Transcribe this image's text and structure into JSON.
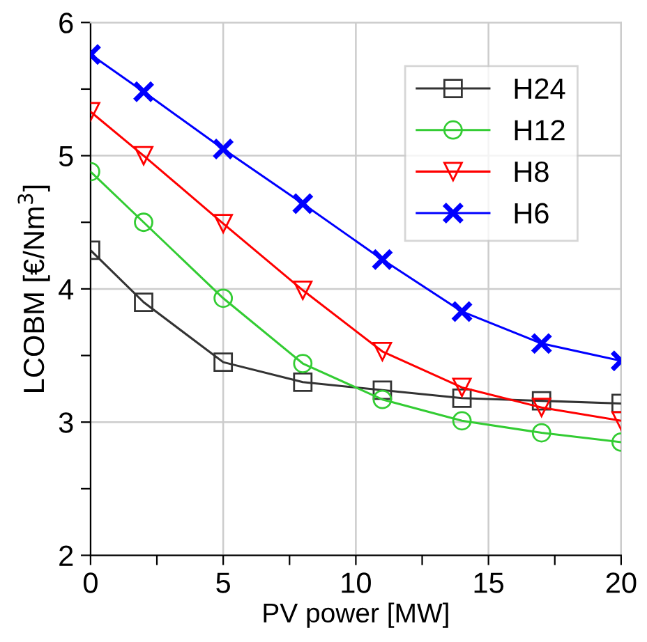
{
  "chart_data": {
    "type": "line",
    "xlabel": "PV power [MW]",
    "ylabel": "LCOBM [€/Nm$^{3}$]",
    "x": [
      0,
      2,
      5,
      8,
      11,
      14,
      17,
      20
    ],
    "series": [
      {
        "name": "H24",
        "color": "#333333",
        "marker": "square",
        "values": [
          4.29,
          3.9,
          3.45,
          3.3,
          3.24,
          3.18,
          3.16,
          3.14
        ]
      },
      {
        "name": "H12",
        "color": "#33cc33",
        "marker": "circle",
        "values": [
          4.88,
          4.5,
          3.93,
          3.44,
          3.17,
          3.01,
          2.92,
          2.85
        ]
      },
      {
        "name": "H8",
        "color": "#ff0000",
        "marker": "triangle",
        "values": [
          5.33,
          5.0,
          4.49,
          3.99,
          3.53,
          3.26,
          3.11,
          3.01
        ]
      },
      {
        "name": "H6",
        "color": "#0000ff",
        "marker": "cross",
        "values": [
          5.76,
          5.48,
          5.05,
          4.64,
          4.22,
          3.83,
          3.59,
          3.46
        ]
      }
    ],
    "xlim": [
      0,
      20
    ],
    "ylim": [
      2,
      6
    ],
    "xticks": [
      0,
      {
        "value": 2.5,
        "label": null
      },
      5,
      {
        "value": 7.5,
        "label": null
      },
      10,
      {
        "value": 12.5,
        "label": null
      },
      15,
      {
        "value": 17.5,
        "label": null
      },
      20
    ],
    "yticks": [
      2,
      {
        "value": 2.5,
        "label": null
      },
      3,
      {
        "value": 3.5,
        "label": null
      },
      4,
      {
        "value": 4.5,
        "label": null
      },
      5,
      {
        "value": 5.5,
        "label": null
      },
      6
    ],
    "grid": true,
    "legend": "top right",
    "line_style": "solid"
  }
}
